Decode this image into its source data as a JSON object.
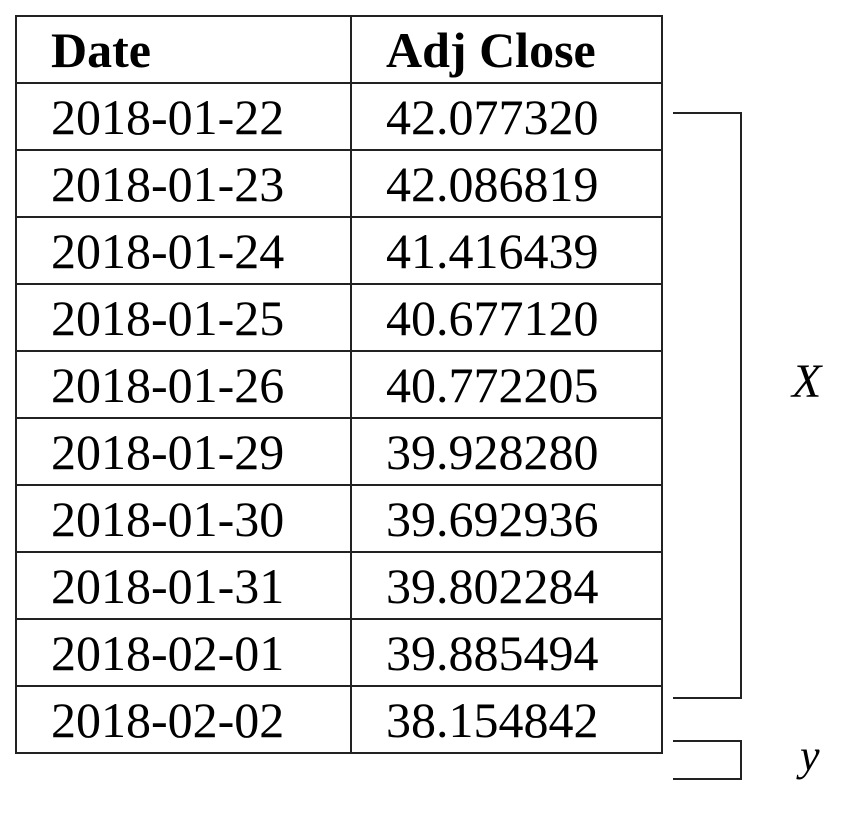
{
  "table": {
    "headers": [
      "Date",
      "Adj Close"
    ],
    "rows": [
      [
        "2018-01-22",
        "42.077320"
      ],
      [
        "2018-01-23",
        "42.086819"
      ],
      [
        "2018-01-24",
        "41.416439"
      ],
      [
        "2018-01-25",
        "40.677120"
      ],
      [
        "2018-01-26",
        "40.772205"
      ],
      [
        "2018-01-29",
        "39.928280"
      ],
      [
        "2018-01-30",
        "39.692936"
      ],
      [
        "2018-01-31",
        "39.802284"
      ],
      [
        "2018-02-01",
        "39.885494"
      ],
      [
        "2018-02-02",
        "38.154842"
      ]
    ]
  },
  "brackets": {
    "x_label": "X",
    "y_label": "y"
  }
}
